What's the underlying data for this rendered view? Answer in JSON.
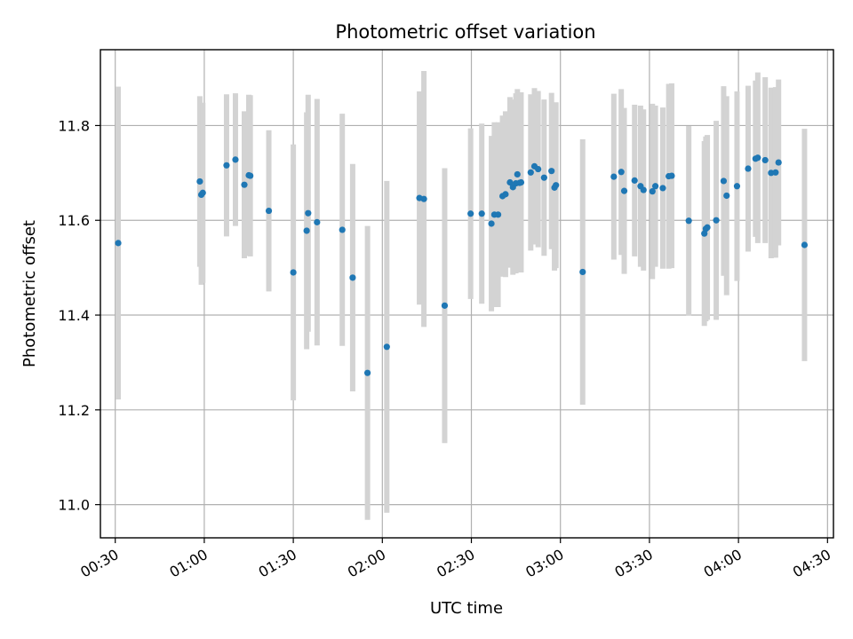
{
  "chart_data": {
    "type": "scatter",
    "title": "Photometric offset variation",
    "xlabel": "UTC time",
    "ylabel": "Photometric offset",
    "xlim": [
      "00:25",
      "04:32"
    ],
    "ylim": [
      10.93,
      11.96
    ],
    "grid": true,
    "x_ticks": [
      "00:30",
      "01:00",
      "01:30",
      "02:00",
      "02:30",
      "03:00",
      "03:30",
      "04:00",
      "04:30"
    ],
    "y_ticks": [
      "11.0",
      "11.2",
      "11.4",
      "11.6",
      "11.8"
    ],
    "marker_color": "#1f77b4",
    "errorbar_color": "#d3d3d3",
    "series": [
      {
        "x": [
          "00:31:00",
          "00:58:30",
          "00:59:00",
          "00:59:30",
          "01:07:30",
          "01:10:30",
          "01:13:30",
          "01:15:00",
          "01:15:30",
          "01:21:45",
          "01:30:00",
          "01:34:30",
          "01:35:00",
          "01:38:00",
          "01:46:30",
          "01:50:00",
          "01:55:00",
          "02:01:30",
          "02:12:30",
          "02:14:00",
          "02:21:00",
          "02:29:45",
          "02:33:30",
          "02:36:45",
          "02:37:45",
          "02:39:00",
          "02:40:30",
          "02:41:30",
          "02:43:00",
          "02:44:00",
          "02:45:00",
          "02:45:30",
          "02:46:15",
          "02:46:45",
          "02:50:00",
          "02:51:15",
          "02:52:30",
          "02:54:30",
          "02:57:00",
          "02:58:00",
          "02:58:30",
          "03:07:30",
          "03:18:00",
          "03:20:30",
          "03:21:30",
          "03:25:00",
          "03:27:00",
          "03:28:00",
          "03:31:00",
          "03:32:00",
          "03:34:30",
          "03:36:30",
          "03:37:30",
          "03:43:15",
          "03:48:30",
          "03:49:00",
          "03:49:30",
          "03:52:30",
          "03:55:00",
          "03:56:00",
          "03:59:30",
          "04:03:15",
          "04:05:45",
          "04:06:30",
          "04:09:00",
          "04:11:00",
          "04:12:30",
          "04:13:30",
          "04:22:15"
        ],
        "y": [
          11.552,
          11.682,
          11.654,
          11.658,
          11.716,
          11.728,
          11.675,
          11.695,
          11.694,
          11.62,
          11.49,
          11.578,
          11.615,
          11.596,
          11.58,
          11.479,
          11.278,
          11.333,
          11.647,
          11.645,
          11.42,
          11.614,
          11.614,
          11.593,
          11.612,
          11.612,
          11.651,
          11.655,
          11.68,
          11.67,
          11.678,
          11.697,
          11.679,
          11.68,
          11.701,
          11.714,
          11.708,
          11.69,
          11.704,
          11.669,
          11.674,
          11.491,
          11.692,
          11.702,
          11.662,
          11.684,
          11.672,
          11.664,
          11.661,
          11.672,
          11.668,
          11.693,
          11.694,
          11.599,
          11.572,
          11.582,
          11.585,
          11.6,
          11.683,
          11.652,
          11.672,
          11.709,
          11.73,
          11.732,
          11.727,
          11.7,
          11.701,
          11.722,
          11.548
        ],
        "err": [
          0.33,
          0.18,
          0.19,
          0.19,
          0.15,
          0.14,
          0.155,
          0.17,
          0.17,
          0.17,
          0.27,
          0.25,
          0.25,
          0.26,
          0.245,
          0.24,
          0.31,
          0.35,
          0.225,
          0.27,
          0.29,
          0.18,
          0.19,
          0.185,
          0.195,
          0.195,
          0.17,
          0.175,
          0.18,
          0.185,
          0.19,
          0.18,
          0.185,
          0.19,
          0.165,
          0.165,
          0.165,
          0.165,
          0.165,
          0.175,
          0.175,
          0.28,
          0.175,
          0.175,
          0.175,
          0.16,
          0.17,
          0.17,
          0.185,
          0.17,
          0.17,
          0.195,
          0.195,
          0.2,
          0.195,
          0.195,
          0.195,
          0.21,
          0.2,
          0.21,
          0.2,
          0.175,
          0.165,
          0.18,
          0.175,
          0.18,
          0.18,
          0.175,
          0.245
        ]
      }
    ]
  }
}
